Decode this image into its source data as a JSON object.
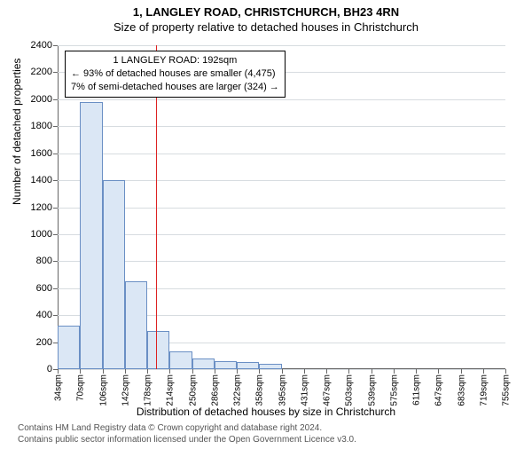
{
  "title_line1": "1, LANGLEY ROAD, CHRISTCHURCH, BH23 4RN",
  "title_line2": "Size of property relative to detached houses in Christchurch",
  "ylabel": "Number of detached properties",
  "xlabel": "Distribution of detached houses by size in Christchurch",
  "footer_line1": "Contains HM Land Registry data © Crown copyright and database right 2024.",
  "footer_line2": "Contains public sector information licensed under the Open Government Licence v3.0.",
  "chart": {
    "type": "histogram",
    "ylim": [
      0,
      2400
    ],
    "ytick_step": 200,
    "yticks": [
      0,
      200,
      400,
      600,
      800,
      1000,
      1200,
      1400,
      1600,
      1800,
      2000,
      2200,
      2400
    ],
    "xtick_labels": [
      "34sqm",
      "70sqm",
      "106sqm",
      "142sqm",
      "178sqm",
      "214sqm",
      "250sqm",
      "286sqm",
      "322sqm",
      "358sqm",
      "395sqm",
      "431sqm",
      "467sqm",
      "503sqm",
      "539sqm",
      "575sqm",
      "611sqm",
      "647sqm",
      "683sqm",
      "719sqm",
      "755sqm"
    ],
    "x_min": 34,
    "x_max": 755,
    "values": [
      320,
      1980,
      1400,
      650,
      280,
      130,
      80,
      60,
      50,
      40,
      0,
      0,
      0,
      0,
      0,
      0,
      0,
      0,
      0,
      0
    ],
    "bar_fill": "#dbe7f5",
    "bar_stroke": "#6a8fc4",
    "grid_color": "#d7dce0",
    "background_color": "#ffffff",
    "reference_line": {
      "value_sqm": 192,
      "color": "#d22",
      "line1": "1 LANGLEY ROAD: 192sqm",
      "line2": "← 93% of detached houses are smaller (4,475)",
      "line3": "7% of semi-detached houses are larger (324) →"
    }
  }
}
